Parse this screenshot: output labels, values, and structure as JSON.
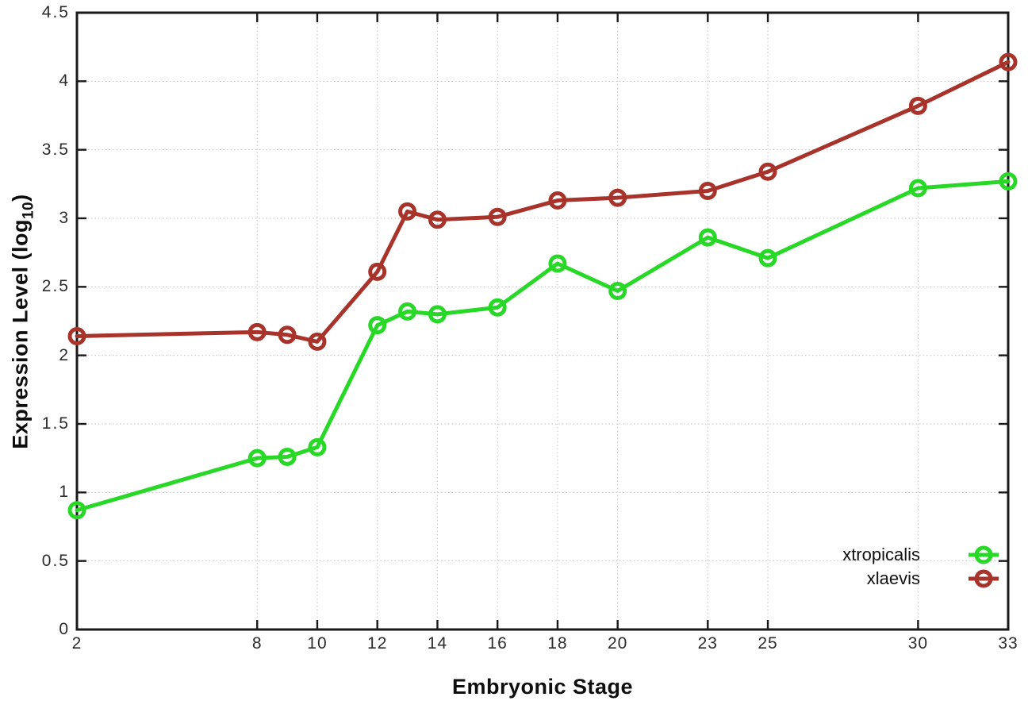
{
  "chart_data": {
    "type": "line",
    "title": "",
    "xlabel": "Embryonic Stage",
    "ylabel": {
      "base": "Expression Level (log",
      "sub": "10",
      "close": ")"
    },
    "xlim": [
      2,
      33
    ],
    "ylim": [
      0,
      4.5
    ],
    "grid": true,
    "legend_position": "inside bottom-right",
    "xticks": [
      {
        "v": 2,
        "label": "2"
      },
      {
        "v": 8,
        "label": "8"
      },
      {
        "v": 10,
        "label": "10"
      },
      {
        "v": 12,
        "label": "12"
      },
      {
        "v": 14,
        "label": "14"
      },
      {
        "v": 16,
        "label": "16"
      },
      {
        "v": 18,
        "label": "18"
      },
      {
        "v": 20,
        "label": "20"
      },
      {
        "v": 23,
        "label": "23"
      },
      {
        "v": 25,
        "label": "25"
      },
      {
        "v": 30,
        "label": "30"
      },
      {
        "v": 33,
        "label": "33"
      }
    ],
    "yticks": [
      {
        "v": 0,
        "label": "0"
      },
      {
        "v": 0.5,
        "label": "0.5"
      },
      {
        "v": 1,
        "label": "1"
      },
      {
        "v": 1.5,
        "label": "1.5"
      },
      {
        "v": 2,
        "label": "2"
      },
      {
        "v": 2.5,
        "label": "2.5"
      },
      {
        "v": 3,
        "label": "3"
      },
      {
        "v": 3.5,
        "label": "3.5"
      },
      {
        "v": 4,
        "label": "4"
      },
      {
        "v": 4.5,
        "label": "4.5"
      }
    ],
    "x": [
      2,
      8,
      9,
      10,
      12,
      13,
      14,
      16,
      18,
      20,
      23,
      25,
      30,
      33
    ],
    "series": [
      {
        "name": "xtropicalis",
        "color": "#27d827",
        "values": [
          0.87,
          1.25,
          1.26,
          1.33,
          2.22,
          2.32,
          2.3,
          2.35,
          2.67,
          2.47,
          2.86,
          2.71,
          3.22,
          3.27
        ]
      },
      {
        "name": "xlaevis",
        "color": "#a8332b",
        "values": [
          2.14,
          2.17,
          2.15,
          2.1,
          2.61,
          3.05,
          2.99,
          3.01,
          3.13,
          3.15,
          3.2,
          3.34,
          3.82,
          4.14
        ]
      }
    ],
    "colors": {
      "axis": "#1a1a1a",
      "grid": "#c3c3c3",
      "tick_text": "#2b2b2b"
    }
  }
}
